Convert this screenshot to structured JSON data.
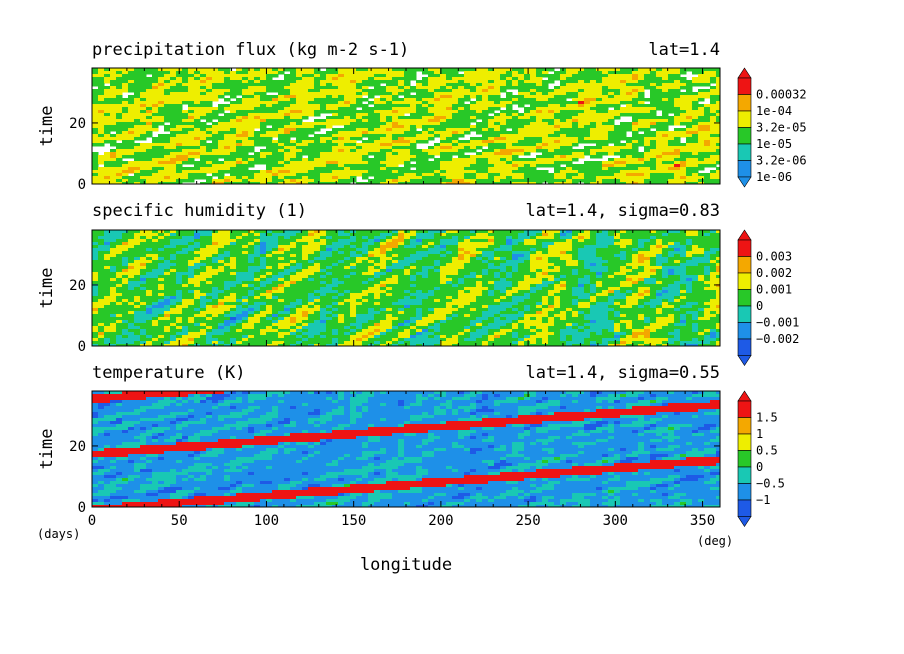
{
  "chart_data": [
    {
      "type": "heatmap",
      "title": "precipitation flux (kg m-2 s-1)",
      "annotation": "lat=1.4",
      "ylabel": "time",
      "xlim": [
        0,
        360
      ],
      "ylim": [
        0,
        38
      ],
      "yticks": [
        0,
        20
      ],
      "colorbar": {
        "labels": [
          "0.00032",
          "1e-04",
          "3.2e-05",
          "1e-05",
          "3.2e-06",
          "1e-06"
        ],
        "colors": [
          "#1e90e8",
          "#19c8b4",
          "#28c828",
          "#eeee00",
          "#f4a800",
          "#ee1414"
        ],
        "under_color": "#1e90e8",
        "over_color": "#ee1414",
        "background": "#ffffff"
      }
    },
    {
      "type": "heatmap",
      "title": "specific humidity (1)",
      "annotation": "lat=1.4, sigma=0.83",
      "ylabel": "time",
      "xlim": [
        0,
        360
      ],
      "ylim": [
        0,
        38
      ],
      "yticks": [
        0,
        20
      ],
      "colorbar": {
        "labels": [
          "0.003",
          "0.002",
          "0.001",
          "0",
          "−0.001",
          "−0.002"
        ],
        "colors": [
          "#1e5ae6",
          "#1e90e8",
          "#19c8b4",
          "#28c828",
          "#eeee00",
          "#f4a800",
          "#ee1414"
        ],
        "under_color": "#1e5ae6",
        "over_color": "#ee1414"
      }
    },
    {
      "type": "heatmap",
      "title": "temperature (K)",
      "annotation": "lat=1.4, sigma=0.55",
      "ylabel": "time",
      "xlabel": "longitude",
      "x_unit": "(deg)",
      "y_unit": "(days)",
      "xlim": [
        0,
        360
      ],
      "ylim": [
        0,
        38
      ],
      "xticks": [
        0,
        50,
        100,
        150,
        200,
        250,
        300,
        350
      ],
      "yticks": [
        0,
        20
      ],
      "colorbar": {
        "labels": [
          "1.5",
          "1",
          "0.5",
          "0",
          "−0.5",
          "−1"
        ],
        "colors": [
          "#1e5ae6",
          "#1e90e8",
          "#19c8b4",
          "#28c828",
          "#eeee00",
          "#f4a800",
          "#ee1414"
        ],
        "under_color": "#1e5ae6",
        "over_color": "#ee1414"
      }
    }
  ]
}
